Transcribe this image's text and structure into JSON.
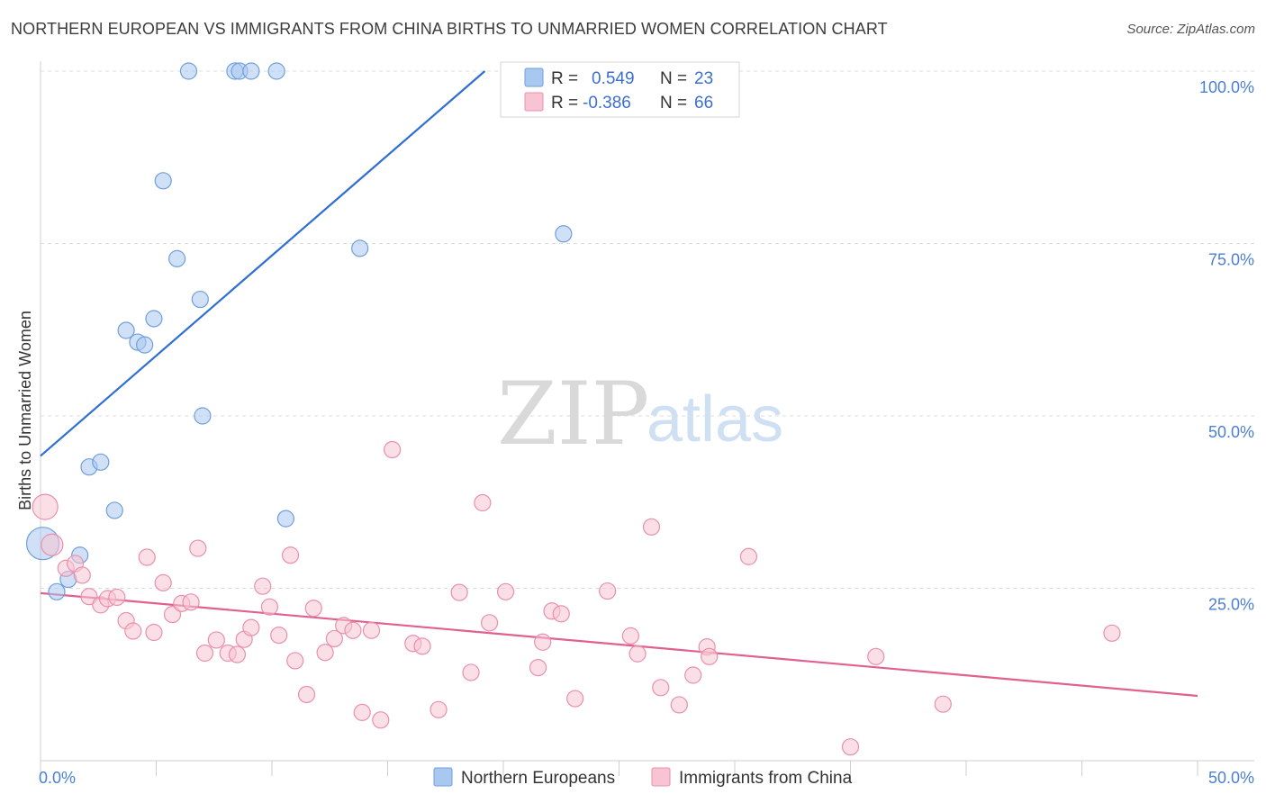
{
  "header": {
    "title": "NORTHERN EUROPEAN VS IMMIGRANTS FROM CHINA BIRTHS TO UNMARRIED WOMEN CORRELATION CHART",
    "source": "Source: ZipAtlas.com"
  },
  "watermark": {
    "zip": "ZIP",
    "atlas": "atlas"
  },
  "legend": {
    "rows": [
      {
        "r_label": "R =",
        "r_value": "0.549",
        "n_label": "N =",
        "n_value": "23",
        "color": "#a9c8f0",
        "stroke": "#6f9fdc"
      },
      {
        "r_label": "R =",
        "r_value": "-0.386",
        "n_label": "N =",
        "n_value": "66",
        "color": "#f8c4d4",
        "stroke": "#e890ac"
      }
    ]
  },
  "bottom_legend": [
    {
      "label": "Northern Europeans",
      "color": "#a9c8f0",
      "stroke": "#6f9fdc"
    },
    {
      "label": "Immigrants from China",
      "color": "#f8c4d4",
      "stroke": "#e890ac"
    }
  ],
  "chart_data": {
    "type": "scatter",
    "ylabel": "Births to Unmarried Women",
    "xlabel": "",
    "xlim": [
      0,
      50
    ],
    "ylim": [
      0,
      100
    ],
    "x_tick_labels": [
      "0.0%",
      "50.0%"
    ],
    "y_tick_labels": [
      "25.0%",
      "50.0%",
      "75.0%",
      "100.0%"
    ],
    "y_ticks": [
      25,
      50,
      75,
      100
    ],
    "grid": true,
    "series": [
      {
        "name": "Northern Europeans",
        "color": "#a9c8f0",
        "stroke": "#6f9fdc",
        "line_color": "#2f6fd2",
        "trend": {
          "x0": 0,
          "y0": 44.2,
          "x1": 19.2,
          "y1": 100
        },
        "points": [
          [
            0.1,
            31.5,
            18
          ],
          [
            0.7,
            24.5,
            9
          ],
          [
            1.2,
            26.3,
            9
          ],
          [
            1.7,
            29.8,
            9
          ],
          [
            2.1,
            42.6,
            9
          ],
          [
            2.6,
            43.3,
            9
          ],
          [
            3.2,
            36.3,
            9
          ],
          [
            3.7,
            62.4,
            9
          ],
          [
            4.2,
            60.7,
            9
          ],
          [
            4.5,
            60.3,
            9
          ],
          [
            4.9,
            64.1,
            9
          ],
          [
            5.3,
            84.1,
            9
          ],
          [
            5.9,
            72.8,
            9
          ],
          [
            6.4,
            100,
            9
          ],
          [
            6.9,
            66.9,
            9
          ],
          [
            7.0,
            50.0,
            9
          ],
          [
            8.4,
            100,
            9
          ],
          [
            8.6,
            100,
            9
          ],
          [
            9.1,
            100,
            9
          ],
          [
            10.2,
            100,
            9
          ],
          [
            10.6,
            35.1,
            9
          ],
          [
            13.8,
            74.3,
            9
          ],
          [
            22.6,
            76.4,
            9
          ]
        ]
      },
      {
        "name": "Immigrants from China",
        "color": "#f8c4d4",
        "stroke": "#e890ac",
        "line_color": "#e0608f",
        "trend": {
          "x0": 0,
          "y0": 24.3,
          "x1": 50,
          "y1": 9.4
        },
        "points": [
          [
            0.2,
            36.8,
            14
          ],
          [
            0.5,
            31.3,
            12
          ],
          [
            1.1,
            27.9,
            9
          ],
          [
            1.5,
            28.6,
            9
          ],
          [
            1.8,
            26.9,
            9
          ],
          [
            2.1,
            23.8,
            9
          ],
          [
            2.6,
            22.6,
            9
          ],
          [
            2.9,
            23.5,
            9
          ],
          [
            3.3,
            23.7,
            9
          ],
          [
            3.7,
            20.3,
            9
          ],
          [
            4.0,
            18.8,
            9
          ],
          [
            4.6,
            29.5,
            9
          ],
          [
            4.9,
            18.6,
            9
          ],
          [
            5.3,
            25.8,
            9
          ],
          [
            5.7,
            21.2,
            9
          ],
          [
            6.1,
            22.8,
            9
          ],
          [
            6.5,
            23.0,
            9
          ],
          [
            6.8,
            30.8,
            9
          ],
          [
            7.1,
            15.6,
            9
          ],
          [
            7.6,
            17.5,
            9
          ],
          [
            8.1,
            15.6,
            9
          ],
          [
            8.5,
            15.4,
            9
          ],
          [
            8.8,
            17.6,
            9
          ],
          [
            9.1,
            19.3,
            9
          ],
          [
            9.6,
            25.3,
            9
          ],
          [
            9.9,
            22.3,
            9
          ],
          [
            10.3,
            18.2,
            9
          ],
          [
            10.8,
            29.8,
            9
          ],
          [
            11.0,
            14.5,
            9
          ],
          [
            11.5,
            9.6,
            9
          ],
          [
            11.8,
            22.1,
            9
          ],
          [
            12.3,
            15.7,
            9
          ],
          [
            12.7,
            17.7,
            9
          ],
          [
            13.1,
            19.6,
            9
          ],
          [
            13.5,
            18.9,
            9
          ],
          [
            13.9,
            7.0,
            9
          ],
          [
            14.3,
            18.9,
            9
          ],
          [
            14.7,
            5.9,
            9
          ],
          [
            15.2,
            45.1,
            9
          ],
          [
            16.1,
            17.0,
            9
          ],
          [
            16.5,
            16.6,
            9
          ],
          [
            17.2,
            7.4,
            9
          ],
          [
            18.1,
            24.4,
            9
          ],
          [
            18.6,
            12.8,
            9
          ],
          [
            19.1,
            37.4,
            9
          ],
          [
            19.4,
            20.0,
            9
          ],
          [
            20.1,
            24.5,
            9
          ],
          [
            21.5,
            13.5,
            9
          ],
          [
            21.7,
            17.2,
            9
          ],
          [
            22.1,
            21.7,
            9
          ],
          [
            22.5,
            21.3,
            9
          ],
          [
            23.1,
            9.0,
            9
          ],
          [
            24.5,
            24.6,
            9
          ],
          [
            25.5,
            18.1,
            9
          ],
          [
            25.8,
            15.5,
            9
          ],
          [
            26.4,
            33.9,
            9
          ],
          [
            26.8,
            10.6,
            9
          ],
          [
            27.6,
            8.1,
            9
          ],
          [
            28.2,
            12.4,
            9
          ],
          [
            28.8,
            16.5,
            9
          ],
          [
            28.9,
            15.1,
            9
          ],
          [
            30.6,
            29.6,
            9
          ],
          [
            35.0,
            2.0,
            9
          ],
          [
            36.1,
            15.1,
            9
          ],
          [
            39.0,
            8.2,
            9
          ],
          [
            46.3,
            18.5,
            9
          ]
        ]
      }
    ]
  }
}
